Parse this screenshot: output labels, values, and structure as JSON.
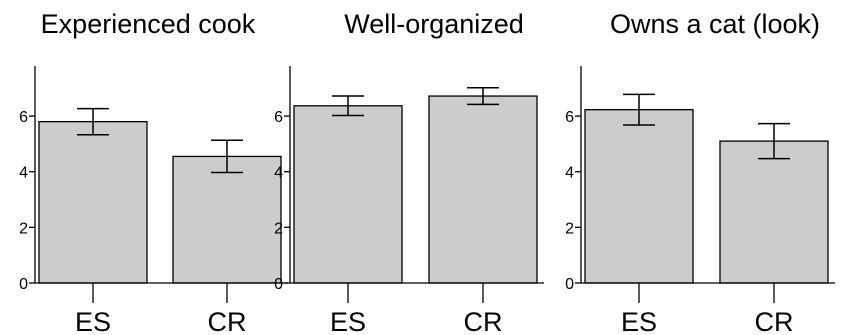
{
  "chart_data": [
    {
      "type": "bar",
      "title": "Experienced cook",
      "categories": [
        "ES",
        "CR"
      ],
      "values": [
        5.8,
        4.55
      ],
      "error": [
        0.47,
        0.58
      ],
      "ylim": [
        0,
        7.8
      ],
      "yticks": [
        0,
        2,
        4,
        6
      ],
      "xlabel": "",
      "ylabel": "",
      "bar_color": "#cccccc",
      "grid": false
    },
    {
      "type": "bar",
      "title": "Well-organized",
      "categories": [
        "ES",
        "CR"
      ],
      "values": [
        6.37,
        6.72
      ],
      "error": [
        0.35,
        0.3
      ],
      "ylim": [
        0,
        7.8
      ],
      "yticks": [
        0,
        2,
        4,
        6
      ],
      "xlabel": "",
      "ylabel": "",
      "bar_color": "#cccccc",
      "grid": false
    },
    {
      "type": "bar",
      "title": "Owns a cat (look)",
      "categories": [
        "ES",
        "CR"
      ],
      "values": [
        6.23,
        5.1
      ],
      "error": [
        0.55,
        0.63
      ],
      "ylim": [
        0,
        7.8
      ],
      "yticks": [
        0,
        2,
        4,
        6
      ],
      "xlabel": "",
      "ylabel": "",
      "bar_color": "#cccccc",
      "grid": false
    }
  ]
}
